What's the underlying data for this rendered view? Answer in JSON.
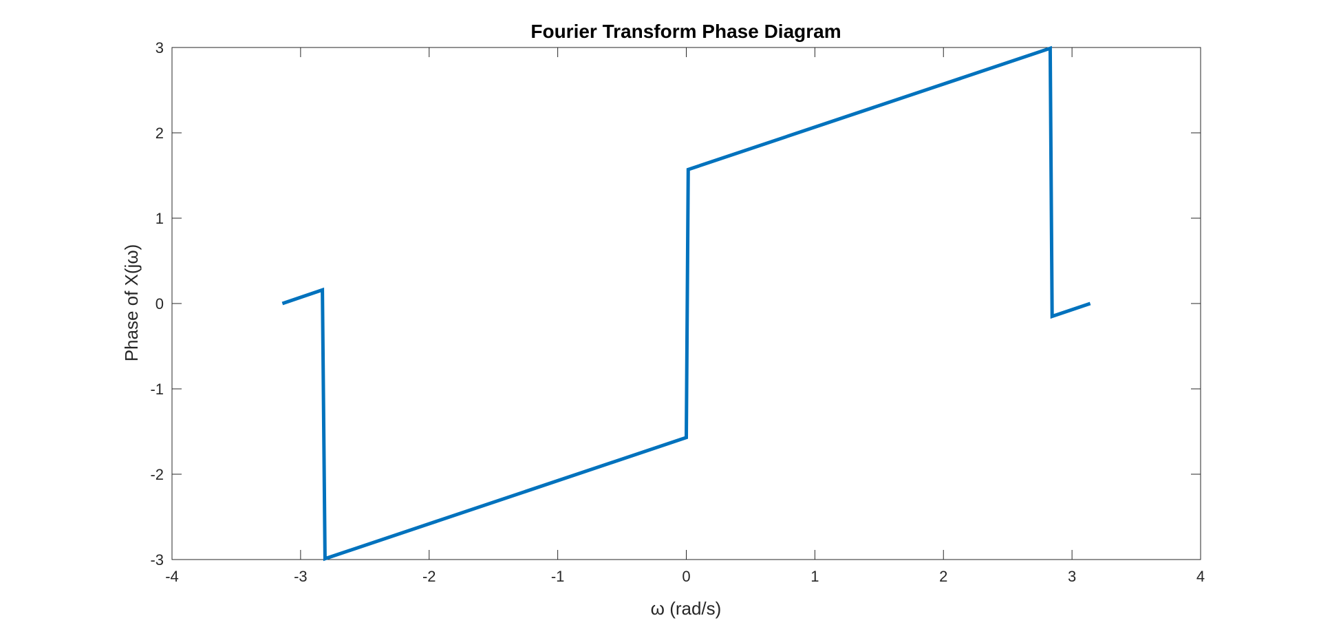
{
  "chart_data": {
    "type": "line",
    "title": "Fourier Transform Phase Diagram",
    "xlabel": "ω (rad/s)",
    "ylabel": "Phase of X(jω)",
    "xlim": [
      -4,
      4
    ],
    "ylim": [
      -3,
      3
    ],
    "xticks": [
      -4,
      -3,
      -2,
      -1,
      0,
      1,
      2,
      3,
      4
    ],
    "yticks": [
      -3,
      -2,
      -1,
      0,
      1,
      2,
      3
    ],
    "xtick_labels": [
      "-4",
      "-3",
      "-2",
      "-1",
      "0",
      "1",
      "2",
      "3",
      "4"
    ],
    "ytick_labels": [
      "-3",
      "-2",
      "-1",
      "0",
      "1",
      "2",
      "3"
    ],
    "grid": false,
    "box": true,
    "series": [
      {
        "color": "#0072BD",
        "x": [
          -3.1416,
          -2.83,
          -2.81,
          0.0,
          0.015,
          2.83,
          2.845,
          3.1416
        ],
        "y": [
          0.0,
          0.16,
          -2.99,
          -1.57,
          1.57,
          2.99,
          -0.15,
          0.0
        ]
      }
    ]
  }
}
